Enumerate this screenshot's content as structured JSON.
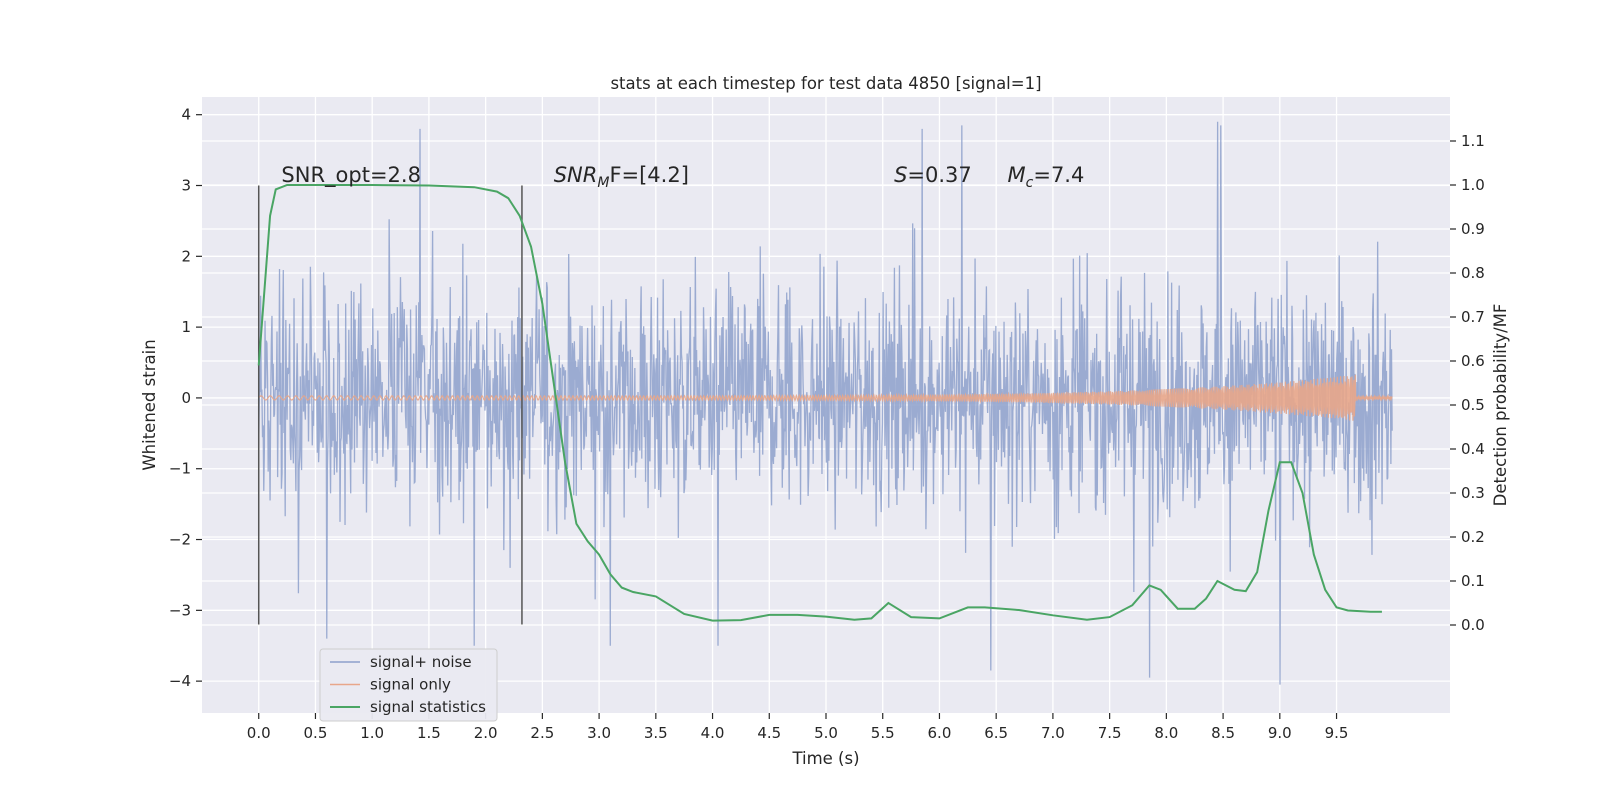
{
  "chart_data": {
    "type": "line",
    "title": "stats at each timestep for test data 4850 [signal=1]",
    "xlabel": "Time (s)",
    "ylabel": "Whitened strain",
    "ylabel_right": "Detection probability/MF",
    "xlim": [
      -0.5,
      10.5
    ],
    "ylim": [
      -4.45,
      4.25
    ],
    "ylim_right": [
      -0.2,
      1.2
    ],
    "x_ticks": [
      "0.0",
      "0.5",
      "1.0",
      "1.5",
      "2.0",
      "2.5",
      "3.0",
      "3.5",
      "4.0",
      "4.5",
      "5.0",
      "5.5",
      "6.0",
      "6.5",
      "7.0",
      "7.5",
      "8.0",
      "8.5",
      "9.0",
      "9.5"
    ],
    "y_ticks": [
      "4",
      "3",
      "2",
      "1",
      "0",
      "−1",
      "−2",
      "−3",
      "−4"
    ],
    "y_ticks_right": [
      "1.1",
      "1.0",
      "0.9",
      "0.8",
      "0.7",
      "0.6",
      "0.5",
      "0.4",
      "0.3",
      "0.2",
      "0.1",
      "0.0"
    ],
    "grid": true,
    "legend_position": "lower-left",
    "series": [
      {
        "name": "signal+ noise",
        "color": "#8da0cb",
        "x_range": [
          0.0,
          9.99
        ],
        "envelope": [
          2.0,
          -2.0
        ],
        "peaks": [
          {
            "x": 1.42,
            "y": 3.8
          },
          {
            "x": 5.85,
            "y": 3.8
          },
          {
            "x": 6.2,
            "y": 3.85
          },
          {
            "x": 8.45,
            "y": 3.9
          },
          {
            "x": 8.48,
            "y": 3.85
          },
          {
            "x": 0.6,
            "y": -3.4
          },
          {
            "x": 1.9,
            "y": -3.5
          },
          {
            "x": 3.1,
            "y": -3.5
          },
          {
            "x": 4.05,
            "y": -3.5
          },
          {
            "x": 6.45,
            "y": -3.85
          },
          {
            "x": 7.85,
            "y": -3.95
          },
          {
            "x": 9.0,
            "y": -4.05
          }
        ]
      },
      {
        "name": "signal only",
        "color": "#e8a68a",
        "x_range": [
          0.0,
          9.99
        ],
        "chirp_peak": {
          "x": 9.67,
          "y": 0.3
        }
      },
      {
        "name": "signal statistics",
        "color": "#4aa564",
        "axis": "right",
        "x": [
          0.0,
          0.1,
          0.15,
          0.25,
          0.5,
          1.0,
          1.5,
          1.9,
          2.1,
          2.2,
          2.3,
          2.4,
          2.5,
          2.6,
          2.7,
          2.8,
          2.9,
          3.0,
          3.1,
          3.2,
          3.3,
          3.5,
          3.75,
          4.0,
          4.25,
          4.5,
          4.75,
          5.0,
          5.25,
          5.4,
          5.55,
          5.75,
          6.0,
          6.25,
          6.4,
          6.7,
          7.0,
          7.3,
          7.5,
          7.7,
          7.85,
          7.95,
          8.1,
          8.25,
          8.35,
          8.45,
          8.6,
          8.7,
          8.8,
          8.9,
          9.0,
          9.1,
          9.2,
          9.3,
          9.4,
          9.5,
          9.6,
          9.8,
          9.9
        ],
        "y": [
          0.59,
          0.93,
          0.99,
          1.0,
          1.0,
          1.0,
          0.999,
          0.995,
          0.985,
          0.97,
          0.93,
          0.86,
          0.73,
          0.55,
          0.37,
          0.23,
          0.19,
          0.16,
          0.115,
          0.085,
          0.075,
          0.065,
          0.025,
          0.01,
          0.011,
          0.023,
          0.023,
          0.019,
          0.012,
          0.015,
          0.05,
          0.018,
          0.015,
          0.04,
          0.04,
          0.034,
          0.022,
          0.012,
          0.018,
          0.045,
          0.09,
          0.08,
          0.037,
          0.037,
          0.06,
          0.1,
          0.08,
          0.077,
          0.12,
          0.26,
          0.37,
          0.37,
          0.3,
          0.16,
          0.08,
          0.04,
          0.033,
          0.03,
          0.03
        ]
      }
    ],
    "vlines": [
      {
        "x": 0.0,
        "ylim": [
          -3.2,
          3.0
        ]
      },
      {
        "x": 2.32,
        "ylim": [
          -3.2,
          3.0
        ]
      }
    ],
    "annotations": [
      {
        "x": 0.2,
        "y": 3.05,
        "text": "SNR_opt=2.8",
        "mathtext": false
      },
      {
        "x": 2.6,
        "y": 3.05,
        "base": "SNR",
        "sub": "M",
        "rest": "F=[4.2]",
        "mathtext": true
      },
      {
        "x": 5.6,
        "y": 3.05,
        "base": "S",
        "sub": "",
        "rest": "=0.37",
        "mathtext": true
      },
      {
        "x": 6.6,
        "y": 3.05,
        "base": "M",
        "sub": "c",
        "rest": "=7.4",
        "mathtext": true
      }
    ]
  }
}
